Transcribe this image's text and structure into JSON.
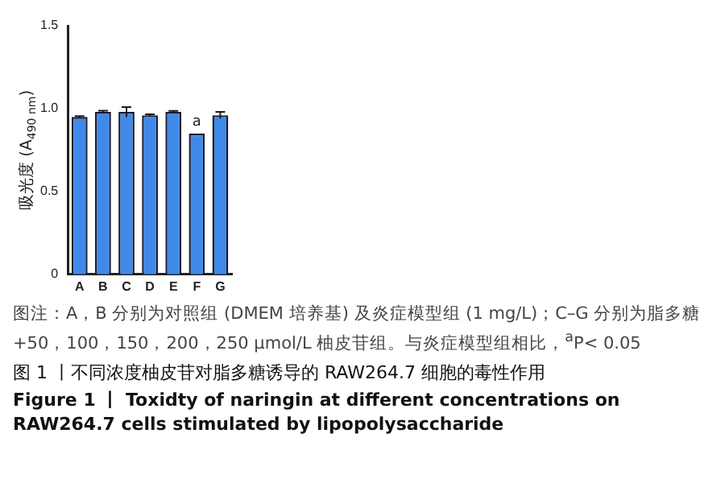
{
  "chart_data": {
    "type": "bar",
    "ylabel": "吸光度 (A$_{490 nm}$)",
    "categories": [
      "A",
      "B",
      "C",
      "D",
      "E",
      "F",
      "G"
    ],
    "values": [
      0.95,
      0.98,
      0.98,
      0.96,
      0.98,
      0.85,
      0.96
    ],
    "errors": [
      0.005,
      0.008,
      0.03,
      0.006,
      0.006,
      null,
      0.02
    ],
    "color": "#3f8ae8",
    "ylim": [
      0,
      1.5
    ],
    "yticks": [
      0,
      0.5,
      {
        "value": 1,
        "label": "1.0"
      },
      1.5
    ],
    "grid": false,
    "legend": false,
    "annotations": [
      {
        "text": "a",
        "x": "F",
        "y": 0.85
      },
      "图注：A，B 分别为对照组 (DMEM 培养基) 及炎症模型组 (1 mg/L)；C–G 分别为脂多糖 +50，100，150，200，250 μmol/L 柚皮苷组。与炎症模型组相比，$^{a}$P< 0.05",
      "图 1 丨不同浓度柚皮苷对脂多糖诱导的 RAW264.7 细胞的毒性作用",
      "Figure 1 丨 Toxidty of naringin at different concentrations on RAW264.7 cells stimulated by lipopolysaccharide"
    ]
  }
}
